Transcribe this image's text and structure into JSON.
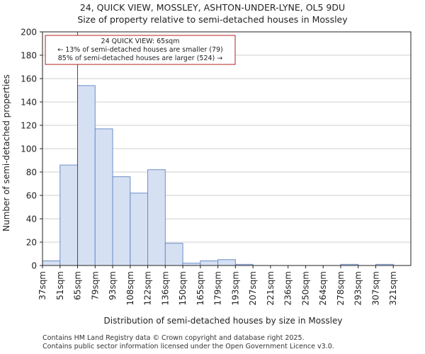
{
  "chart_data": {
    "type": "bar",
    "title_line1": "24, QUICK VIEW, MOSSLEY, ASHTON-UNDER-LYNE, OL5 9DU",
    "title_line2": "Size of property relative to semi-detached houses in Mossley",
    "xlabel": "Distribution of semi-detached houses by size in Mossley",
    "ylabel": "Number of semi-detached properties",
    "ylim": [
      0,
      200
    ],
    "yticks": [
      0,
      20,
      40,
      60,
      80,
      100,
      120,
      140,
      160,
      180,
      200
    ],
    "categories": [
      "37sqm",
      "51sqm",
      "65sqm",
      "79sqm",
      "93sqm",
      "108sqm",
      "122sqm",
      "136sqm",
      "150sqm",
      "165sqm",
      "179sqm",
      "193sqm",
      "207sqm",
      "221sqm",
      "236sqm",
      "250sqm",
      "264sqm",
      "278sqm",
      "293sqm",
      "307sqm",
      "321sqm"
    ],
    "values": [
      4,
      86,
      154,
      117,
      76,
      62,
      82,
      19,
      2,
      4,
      5,
      1,
      0,
      0,
      0,
      0,
      0,
      1,
      0,
      1,
      0
    ],
    "bar_fill": "#d6e0f3",
    "bar_stroke": "#6b8fc9",
    "marker_value_index": 2,
    "marker_color": "#b22222",
    "annotation": {
      "line1": "24 QUICK VIEW: 65sqm",
      "line2": "← 13% of semi-detached houses are smaller (79)",
      "line3": "85% of semi-detached houses are larger (524) →",
      "border_color": "#b22222"
    }
  },
  "footer": {
    "line1": "Contains HM Land Registry data © Crown copyright and database right 2025.",
    "line2": "Contains public sector information licensed under the Open Government Licence v3.0."
  }
}
